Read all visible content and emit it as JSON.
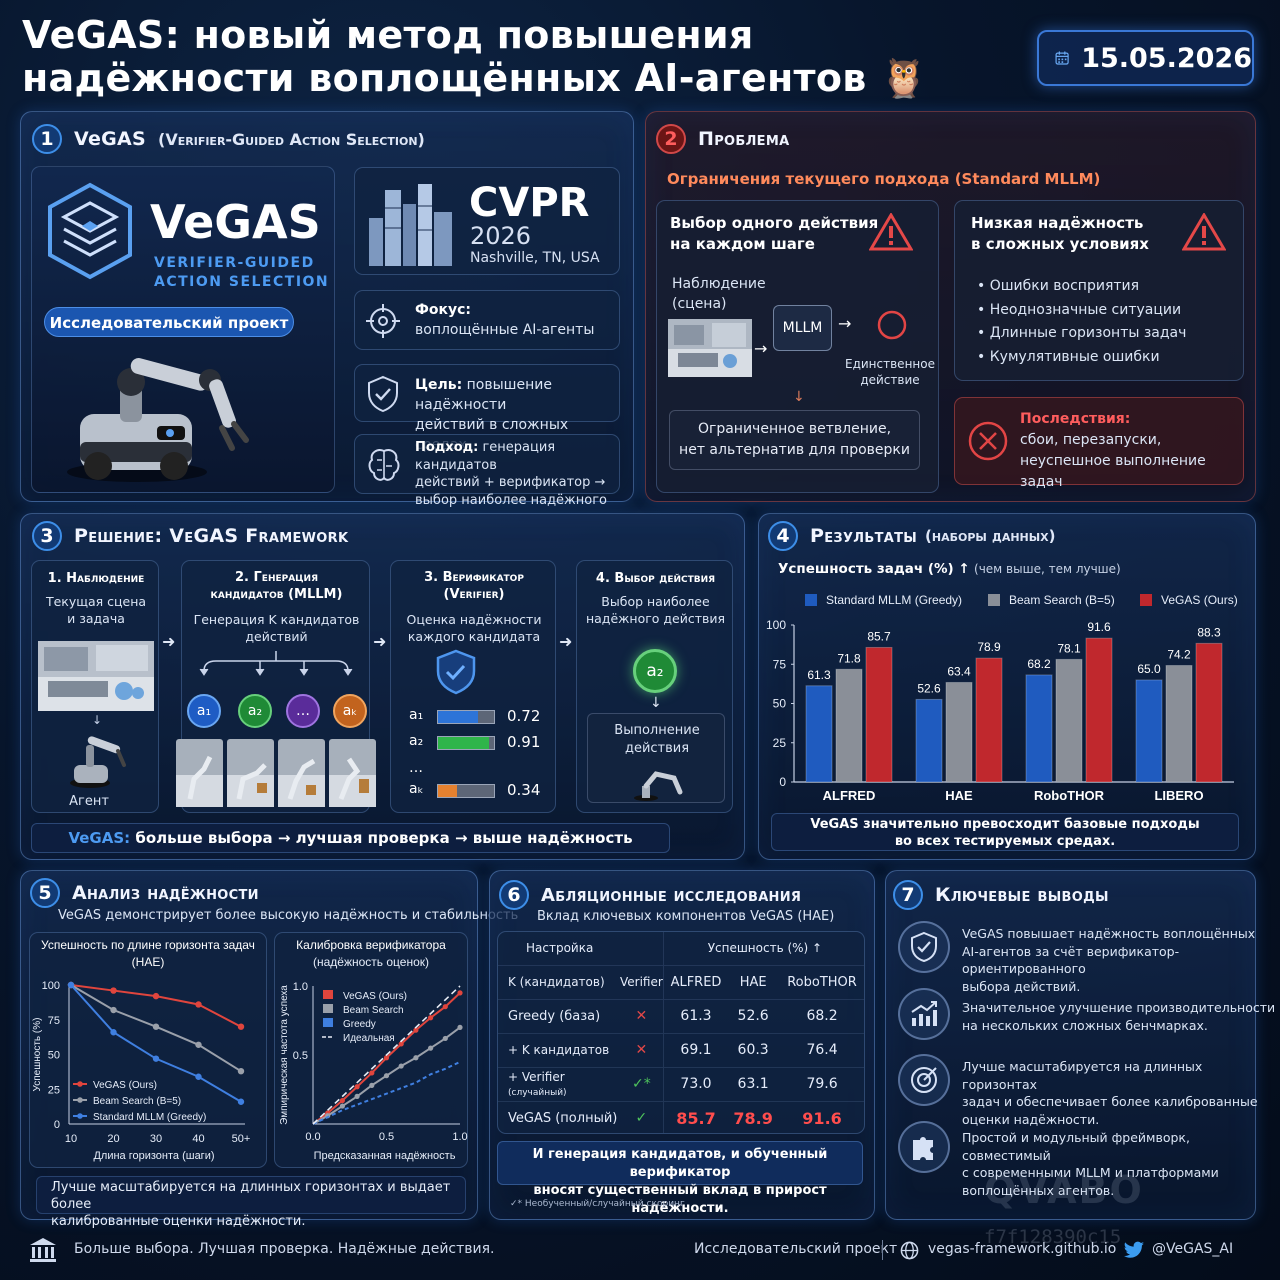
{
  "header": {
    "title_line1": "VeGAS: новый метод повышения",
    "title_line2": "надёжности воплощённых AI-агентов",
    "owl": "🦉",
    "date": "15.05.2026"
  },
  "s1": {
    "num": "1",
    "title": "VeGAS",
    "title_sub": "(Verifier-Guided Action Selection)",
    "logo": "VeGAS",
    "logo_sub1": "VERIFIER-GUIDED",
    "logo_sub2": "ACTION SELECTION",
    "badge": "Исследовательский проект",
    "conf": "CVPR",
    "year": "2026",
    "place": "Nashville, TN, USA",
    "focus_label": "Фокус:",
    "focus_text": "воплощённые AI-агенты",
    "goal_label": "Цель:",
    "goal_text1": "повышение надёжности",
    "goal_text2": "действий в сложных средах",
    "approach_label": "Подход:",
    "approach_text1": "генерация кандидатов",
    "approach_text2": "действий + верификатор →",
    "approach_text3": "выбор наиболее надёжного"
  },
  "s2": {
    "num": "2",
    "title": "Проблема",
    "subtitle": "Ограничения текущего подхода (Standard MLLM)",
    "c1_title1": "Выбор одного действия",
    "c1_title2": "на каждом шаге",
    "obs1": "Наблюдение",
    "obs2": "(сцена)",
    "mllm": "MLLM",
    "single1": "Единственное",
    "single2": "действие",
    "limited1": "Ограниченное ветвление,",
    "limited2": "нет альтернатив для проверки",
    "c2_title1": "Низкая надёжность",
    "c2_title2": "в сложных условиях",
    "bullets": [
      "Ошибки восприятия",
      "Неоднозначные ситуации",
      "Длинные горизонты задач",
      "Кумулятивные ошибки"
    ],
    "cons_label": "Последствия:",
    "cons1": "сбои, перезапуски,",
    "cons2": "неуспешное выполнение задач"
  },
  "s3": {
    "num": "3",
    "title": "Решение: VeGAS Framework",
    "st1_title": "1. Наблюдение",
    "st1_sub1": "Текущая сцена",
    "st1_sub2": "и задача",
    "agent": "Агент",
    "st2_title1": "2. Генерация",
    "st2_title2": "кандидатов (MLLM)",
    "st2_sub1": "Генерация K кандидатов",
    "st2_sub2": "действий",
    "cands": [
      "a₁",
      "a₂",
      "…",
      "aₖ"
    ],
    "st3_title1": "3. Верификатор",
    "st3_title2": "(Verifier)",
    "st3_sub1": "Оценка надёжности",
    "st3_sub2": "каждого кандидата",
    "scores": [
      {
        "label": "a₁",
        "value": "0.72",
        "v": 0.72,
        "color": "#2d74d8"
      },
      {
        "label": "a₂",
        "value": "0.91",
        "v": 0.91,
        "color": "#2fb54a"
      },
      {
        "label": "…",
        "value": "",
        "v": 0,
        "color": "#000"
      },
      {
        "label": "aₖ",
        "value": "0.34",
        "v": 0.34,
        "color": "#e5812f"
      }
    ],
    "st4_title": "4. Выбор действия",
    "st4_sub1": "Выбор наиболее",
    "st4_sub2": "надёжного действия",
    "chosen": "a₂",
    "exec1": "Выполнение",
    "exec2": "действия",
    "bottom_a": "VeGAS:",
    "bottom_b": "больше выбора → лучшая проверка → выше надёжность"
  },
  "s4": {
    "num": "4",
    "title": "Результаты",
    "title_sub": "(наборы данных)",
    "subtitle": "Успешность задач (%) ↑",
    "subtitle2": "(чем выше, тем лучше)",
    "note1": "VeGAS значительно превосходит базовые подходы",
    "note2": "во всех тестируемых средах."
  },
  "chart_data": [
    {
      "type": "bar",
      "ylabel": "Успешность задач (%) ↑",
      "ylim": [
        0,
        100
      ],
      "yticks": [
        0,
        25,
        50,
        75,
        100
      ],
      "categories": [
        "ALFRED",
        "HAE",
        "RoboTHOR",
        "LIBERO"
      ],
      "legend_position": "top",
      "series": [
        {
          "name": "Standard MLLM (Greedy)",
          "color": "#1f5bbf",
          "values": [
            61.3,
            52.6,
            68.2,
            65.0
          ]
        },
        {
          "name": "Beam Search (B=5)",
          "color": "#8a8f98",
          "values": [
            71.8,
            63.4,
            78.1,
            74.2
          ]
        },
        {
          "name": "VeGAS (Ours)",
          "color": "#c0282d",
          "values": [
            85.7,
            78.9,
            91.6,
            88.3
          ]
        }
      ]
    },
    {
      "type": "line",
      "title": "Успешность по длине горизонта задач (HAE)",
      "xlabel": "Длина горизонта (шаги)",
      "ylabel": "Успешность (%)",
      "x": [
        "10",
        "20",
        "30",
        "40",
        "50+"
      ],
      "ylim": [
        0,
        100
      ],
      "yticks": [
        0,
        25,
        50,
        75,
        100
      ],
      "series": [
        {
          "name": "VeGAS (Ours)",
          "color": "#e0453d",
          "values": [
            100,
            96,
            92,
            86,
            70
          ]
        },
        {
          "name": "Beam Search (B=5)",
          "color": "#9aa0aa",
          "values": [
            100,
            82,
            70,
            57,
            38
          ]
        },
        {
          "name": "Standard MLLM (Greedy)",
          "color": "#3f7fe0",
          "values": [
            100,
            66,
            47,
            34,
            16
          ]
        }
      ]
    },
    {
      "type": "line",
      "title": "Калибровка верификатора",
      "subtitle": "(надёжность оценок)",
      "xlabel": "Предсказанная надёжность",
      "ylabel": "Эмпирическая частота успеха",
      "xlim": [
        0,
        1
      ],
      "ylim": [
        0,
        1
      ],
      "xticks": [
        0.0,
        0.5,
        1.0
      ],
      "series": [
        {
          "name": "VeGAS (Ours)",
          "color": "#e0453d",
          "points": [
            [
              0,
              0
            ],
            [
              0.1,
              0.08
            ],
            [
              0.2,
              0.17
            ],
            [
              0.3,
              0.27
            ],
            [
              0.4,
              0.37
            ],
            [
              0.5,
              0.48
            ],
            [
              0.6,
              0.58
            ],
            [
              0.7,
              0.68
            ],
            [
              0.8,
              0.77
            ],
            [
              0.9,
              0.85
            ],
            [
              1,
              0.95
            ]
          ]
        },
        {
          "name": "Beam Search",
          "color": "#9aa0aa",
          "points": [
            [
              0,
              0
            ],
            [
              0.1,
              0.06
            ],
            [
              0.2,
              0.13
            ],
            [
              0.3,
              0.2
            ],
            [
              0.4,
              0.28
            ],
            [
              0.5,
              0.35
            ],
            [
              0.6,
              0.42
            ],
            [
              0.7,
              0.48
            ],
            [
              0.8,
              0.55
            ],
            [
              0.9,
              0.62
            ],
            [
              1,
              0.7
            ]
          ]
        },
        {
          "name": "Greedy",
          "color": "#3f7fe0",
          "points": [
            [
              0,
              0
            ],
            [
              0.1,
              0.05
            ],
            [
              0.2,
              0.1
            ],
            [
              0.3,
              0.14
            ],
            [
              0.4,
              0.18
            ],
            [
              0.5,
              0.22
            ],
            [
              0.6,
              0.26
            ],
            [
              0.7,
              0.3
            ],
            [
              0.8,
              0.36
            ],
            [
              0.9,
              0.4
            ],
            [
              1,
              0.45
            ]
          ]
        },
        {
          "name": "Идеальная",
          "color": "#e8ecf5",
          "points": [
            [
              0,
              0
            ],
            [
              1,
              1
            ]
          ]
        }
      ]
    },
    {
      "type": "table",
      "columns": [
        "Настройка",
        "K (кандидатов)",
        "Verifier",
        "ALFRED",
        "HAE",
        "RoboTHOR"
      ],
      "rows": [
        [
          "Greedy (база)",
          "",
          "✕",
          "61.3",
          "52.6",
          "68.2"
        ],
        [
          "+ K кандидатов",
          "",
          "✕",
          "69.1",
          "60.3",
          "76.4"
        ],
        [
          "+ Verifier",
          "(случайный)",
          "✓*",
          "73.0",
          "63.1",
          "79.6"
        ],
        [
          "VeGAS (полный)",
          "",
          "✓",
          "85.7",
          "78.9",
          "91.6"
        ]
      ]
    }
  ],
  "s5": {
    "num": "5",
    "title": "Анализ надёжности",
    "subtitle": "VeGAS демонстрирует более высокую надёжность и стабильность",
    "y_ticks": [
      "100",
      "75",
      "50",
      "25",
      "0"
    ],
    "calib_y_ticks": [
      "1.0",
      "0.5"
    ],
    "calib_x_ticks": [
      "0.0",
      "0.5",
      "1.0"
    ],
    "note1": "Лучше масштабируется на длинных горизонтах и выдает более",
    "note2": "калиброванные оценки надёжности."
  },
  "s6": {
    "num": "6",
    "title": "Абляционные исследования",
    "subtitle": "Вклад ключевых компонентов VeGAS (HAE)",
    "h_setting": "Настройка",
    "h_success": "Успешность (%) ↑",
    "h_k": "K (кандидатов)",
    "h_verifier": "Verifier",
    "h_alfred": "ALFRED",
    "h_hae": "HAE",
    "h_robothor": "RoboTHOR",
    "r1": "Greedy (база)",
    "r2": "+ K кандидатов",
    "r3": "+ Verifier",
    "r3s": "(случайный)",
    "r4": "VeGAS (полный)",
    "note1": "И генерация кандидатов, и обученный верификатор",
    "note2": "вносят существенный вклад в прирост надёжности.",
    "foot": "✓* Необученный/случайный скоринг"
  },
  "s7": {
    "num": "7",
    "title": "Ключевые выводы",
    "items": [
      {
        "l1": "VeGAS повышает надёжность воплощённых",
        "l2": "AI-агентов за счёт верификатор-ориентированного",
        "l3": "выбора действий."
      },
      {
        "l1": "Значительное улучшение производительности",
        "l2": "на нескольких сложных бенчмарках.",
        "l3": ""
      },
      {
        "l1": "Лучше масштабируется на длинных горизонтах",
        "l2": "задач и обеспечивает более калиброванные",
        "l3": "оценки надёжности."
      },
      {
        "l1": "Простой и модульный фреймворк, совместимый",
        "l2": "с современными MLLM и платформами",
        "l3": "воплощённых агентов."
      }
    ]
  },
  "footer": {
    "slogan": "Больше выбора. Лучшая проверка. Надёжные действия.",
    "project": "Исследовательский проект",
    "site": "vegas-framework.github.io",
    "twitter": "@VeGAS_AI"
  },
  "watermark": {
    "brand": "QVABO",
    "code": "f7f128390c15"
  }
}
